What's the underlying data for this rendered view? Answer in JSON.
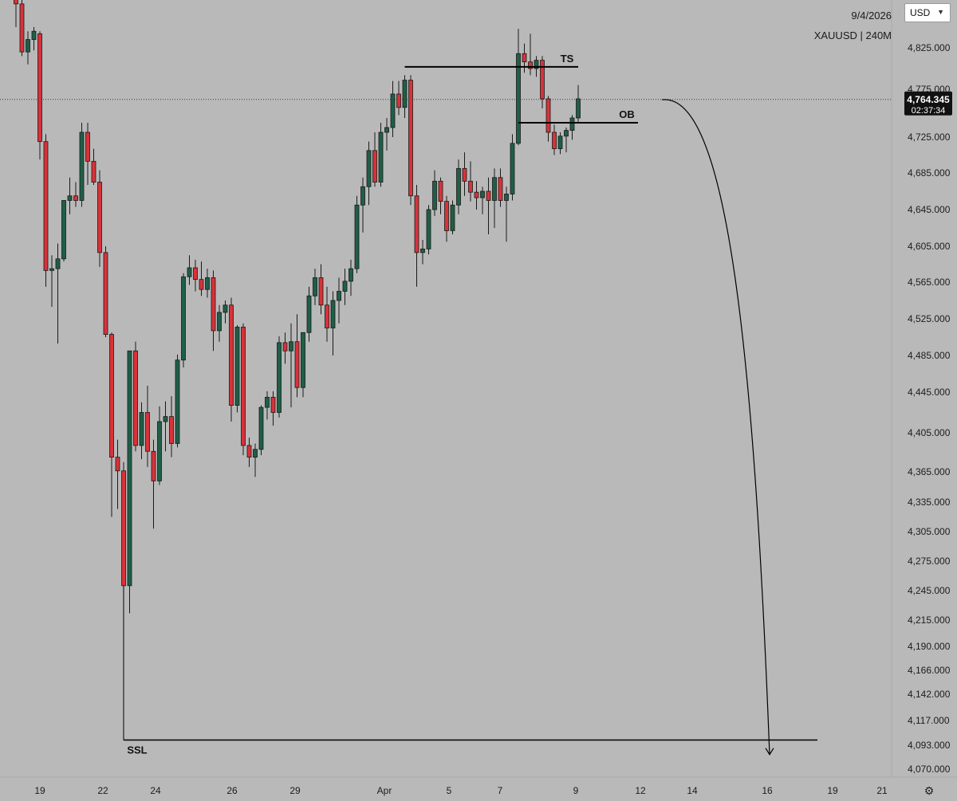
{
  "header": {
    "date": "9/4/2026",
    "symbol_line": "XAUUSD | 240M"
  },
  "currency_select": {
    "value": "USD",
    "chevron_icon": "chevron-down-icon"
  },
  "settings_icon": "gear-icon",
  "colors": {
    "background": "#b9b9b9",
    "bull": "#1f5f47",
    "bear": "#d8323a",
    "wick": "#1a1a1a",
    "price_tag_bg": "#111111",
    "price_tag_text": "#ffffff"
  },
  "chart_data": {
    "type": "candlestick",
    "symbol": "XAUUSD",
    "timeframe": "240M",
    "y_axis_ticks": [
      "4,825.000",
      "4,775.000",
      "4,725.000",
      "4,685.000",
      "4,645.000",
      "4,605.000",
      "4,565.000",
      "4,525.000",
      "4,485.000",
      "4,445.000",
      "4,405.000",
      "4,365.000",
      "4,335.000",
      "4,305.000",
      "4,275.000",
      "4,245.000",
      "4,215.000",
      "4,190.000",
      "4,166.000",
      "4,142.000",
      "4,117.000",
      "4,093.000",
      "4,070.000"
    ],
    "x_axis_ticks": [
      "19",
      "22",
      "24",
      "26",
      "29",
      "Apr",
      "5",
      "7",
      "9",
      "12",
      "14",
      "16",
      "19",
      "21"
    ],
    "current_price": {
      "price": "4,764.345",
      "countdown": "02:37:34",
      "value": 4764.345
    },
    "candles": [
      {
        "o": 4900,
        "h": 4910,
        "l": 4850,
        "c": 4878
      },
      {
        "o": 4878,
        "h": 4900,
        "l": 4815,
        "c": 4820
      },
      {
        "o": 4820,
        "h": 4845,
        "l": 4805,
        "c": 4835
      },
      {
        "o": 4835,
        "h": 4850,
        "l": 4822,
        "c": 4845
      },
      {
        "o": 4842,
        "h": 4845,
        "l": 4700,
        "c": 4720
      },
      {
        "o": 4720,
        "h": 4728,
        "l": 4560,
        "c": 4578
      },
      {
        "o": 4578,
        "h": 4595,
        "l": 4538,
        "c": 4580
      },
      {
        "o": 4580,
        "h": 4608,
        "l": 4498,
        "c": 4591
      },
      {
        "o": 4591,
        "h": 4655,
        "l": 4588,
        "c": 4655
      },
      {
        "o": 4655,
        "h": 4680,
        "l": 4640,
        "c": 4660
      },
      {
        "o": 4660,
        "h": 4675,
        "l": 4648,
        "c": 4655
      },
      {
        "o": 4655,
        "h": 4740,
        "l": 4648,
        "c": 4730
      },
      {
        "o": 4730,
        "h": 4740,
        "l": 4672,
        "c": 4698
      },
      {
        "o": 4698,
        "h": 4712,
        "l": 4672,
        "c": 4675
      },
      {
        "o": 4675,
        "h": 4688,
        "l": 4582,
        "c": 4598
      },
      {
        "o": 4598,
        "h": 4605,
        "l": 4505,
        "c": 4508
      },
      {
        "o": 4508,
        "h": 4510,
        "l": 4320,
        "c": 4380
      },
      {
        "o": 4380,
        "h": 4398,
        "l": 4328,
        "c": 4366
      },
      {
        "o": 4366,
        "h": 4375,
        "l": 4230,
        "c": 4250
      },
      {
        "o": 4250,
        "h": 4490,
        "l": 4222,
        "c": 4490
      },
      {
        "o": 4490,
        "h": 4500,
        "l": 4386,
        "c": 4392
      },
      {
        "o": 4392,
        "h": 4435,
        "l": 4378,
        "c": 4425
      },
      {
        "o": 4425,
        "h": 4452,
        "l": 4370,
        "c": 4386
      },
      {
        "o": 4386,
        "h": 4398,
        "l": 4308,
        "c": 4356
      },
      {
        "o": 4356,
        "h": 4431,
        "l": 4352,
        "c": 4416
      },
      {
        "o": 4416,
        "h": 4436,
        "l": 4386,
        "c": 4421
      },
      {
        "o": 4421,
        "h": 4441,
        "l": 4380,
        "c": 4394
      },
      {
        "o": 4394,
        "h": 4486,
        "l": 4390,
        "c": 4480
      },
      {
        "o": 4480,
        "h": 4575,
        "l": 4472,
        "c": 4571
      },
      {
        "o": 4571,
        "h": 4595,
        "l": 4562,
        "c": 4581
      },
      {
        "o": 4581,
        "h": 4590,
        "l": 4555,
        "c": 4568
      },
      {
        "o": 4568,
        "h": 4588,
        "l": 4550,
        "c": 4557
      },
      {
        "o": 4557,
        "h": 4580,
        "l": 4548,
        "c": 4570
      },
      {
        "o": 4570,
        "h": 4578,
        "l": 4490,
        "c": 4512
      },
      {
        "o": 4512,
        "h": 4540,
        "l": 4500,
        "c": 4532
      },
      {
        "o": 4532,
        "h": 4545,
        "l": 4520,
        "c": 4540
      },
      {
        "o": 4540,
        "h": 4548,
        "l": 4416,
        "c": 4432
      },
      {
        "o": 4432,
        "h": 4518,
        "l": 4425,
        "c": 4516
      },
      {
        "o": 4516,
        "h": 4520,
        "l": 4382,
        "c": 4392
      },
      {
        "o": 4392,
        "h": 4400,
        "l": 4370,
        "c": 4380
      },
      {
        "o": 4380,
        "h": 4394,
        "l": 4360,
        "c": 4388
      },
      {
        "o": 4388,
        "h": 4432,
        "l": 4382,
        "c": 4430
      },
      {
        "o": 4430,
        "h": 4446,
        "l": 4418,
        "c": 4440
      },
      {
        "o": 4440,
        "h": 4446,
        "l": 4412,
        "c": 4425
      },
      {
        "o": 4425,
        "h": 4506,
        "l": 4420,
        "c": 4499
      },
      {
        "o": 4499,
        "h": 4510,
        "l": 4476,
        "c": 4490
      },
      {
        "o": 4490,
        "h": 4520,
        "l": 4430,
        "c": 4500
      },
      {
        "o": 4500,
        "h": 4530,
        "l": 4440,
        "c": 4450
      },
      {
        "o": 4450,
        "h": 4510,
        "l": 4440,
        "c": 4510
      },
      {
        "o": 4510,
        "h": 4560,
        "l": 4500,
        "c": 4550
      },
      {
        "o": 4550,
        "h": 4580,
        "l": 4540,
        "c": 4570
      },
      {
        "o": 4570,
        "h": 4585,
        "l": 4530,
        "c": 4540
      },
      {
        "o": 4540,
        "h": 4560,
        "l": 4500,
        "c": 4515
      },
      {
        "o": 4515,
        "h": 4555,
        "l": 4485,
        "c": 4545
      },
      {
        "o": 4545,
        "h": 4570,
        "l": 4520,
        "c": 4555
      },
      {
        "o": 4555,
        "h": 4580,
        "l": 4540,
        "c": 4566
      },
      {
        "o": 4566,
        "h": 4590,
        "l": 4550,
        "c": 4580
      },
      {
        "o": 4580,
        "h": 4660,
        "l": 4575,
        "c": 4650
      },
      {
        "o": 4650,
        "h": 4680,
        "l": 4620,
        "c": 4670
      },
      {
        "o": 4670,
        "h": 4720,
        "l": 4650,
        "c": 4710
      },
      {
        "o": 4710,
        "h": 4730,
        "l": 4670,
        "c": 4675
      },
      {
        "o": 4675,
        "h": 4740,
        "l": 4670,
        "c": 4730
      },
      {
        "o": 4730,
        "h": 4745,
        "l": 4710,
        "c": 4735
      },
      {
        "o": 4735,
        "h": 4785,
        "l": 4725,
        "c": 4770
      },
      {
        "o": 4770,
        "h": 4785,
        "l": 4748,
        "c": 4756
      },
      {
        "o": 4756,
        "h": 4792,
        "l": 4745,
        "c": 4786
      },
      {
        "o": 4786,
        "h": 4792,
        "l": 4650,
        "c": 4660
      },
      {
        "o": 4660,
        "h": 4672,
        "l": 4560,
        "c": 4598
      },
      {
        "o": 4598,
        "h": 4612,
        "l": 4585,
        "c": 4602
      },
      {
        "o": 4602,
        "h": 4650,
        "l": 4596,
        "c": 4645
      },
      {
        "o": 4645,
        "h": 4688,
        "l": 4638,
        "c": 4676
      },
      {
        "o": 4676,
        "h": 4680,
        "l": 4640,
        "c": 4654
      },
      {
        "o": 4654,
        "h": 4660,
        "l": 4610,
        "c": 4622
      },
      {
        "o": 4622,
        "h": 4655,
        "l": 4618,
        "c": 4650
      },
      {
        "o": 4650,
        "h": 4700,
        "l": 4640,
        "c": 4690
      },
      {
        "o": 4690,
        "h": 4708,
        "l": 4660,
        "c": 4676
      },
      {
        "o": 4676,
        "h": 4698,
        "l": 4654,
        "c": 4664
      },
      {
        "o": 4664,
        "h": 4676,
        "l": 4645,
        "c": 4658
      },
      {
        "o": 4658,
        "h": 4670,
        "l": 4640,
        "c": 4665
      },
      {
        "o": 4665,
        "h": 4680,
        "l": 4618,
        "c": 4655
      },
      {
        "o": 4655,
        "h": 4690,
        "l": 4625,
        "c": 4680
      },
      {
        "o": 4680,
        "h": 4690,
        "l": 4648,
        "c": 4655
      },
      {
        "o": 4655,
        "h": 4670,
        "l": 4610,
        "c": 4662
      },
      {
        "o": 4662,
        "h": 4728,
        "l": 4655,
        "c": 4718
      },
      {
        "o": 4718,
        "h": 4848,
        "l": 4716,
        "c": 4818
      },
      {
        "o": 4818,
        "h": 4830,
        "l": 4795,
        "c": 4808
      },
      {
        "o": 4808,
        "h": 4842,
        "l": 4792,
        "c": 4800
      },
      {
        "o": 4800,
        "h": 4815,
        "l": 4790,
        "c": 4810
      },
      {
        "o": 4810,
        "h": 4815,
        "l": 4755,
        "c": 4765
      },
      {
        "o": 4765,
        "h": 4768,
        "l": 4720,
        "c": 4730
      },
      {
        "o": 4730,
        "h": 4738,
        "l": 4705,
        "c": 4712
      },
      {
        "o": 4712,
        "h": 4730,
        "l": 4706,
        "c": 4726
      },
      {
        "o": 4726,
        "h": 4735,
        "l": 4708,
        "c": 4732
      },
      {
        "o": 4732,
        "h": 4748,
        "l": 4722,
        "c": 4745
      },
      {
        "o": 4745,
        "h": 4780,
        "l": 4740,
        "c": 4765
      }
    ],
    "annotations": {
      "ts": {
        "label": "TS",
        "price": 4802,
        "from_candle": 65,
        "to_candle": 94
      },
      "ob": {
        "label": "OB",
        "price": 4740,
        "from_candle": 84,
        "to_candle": 104
      },
      "ssl": {
        "label": "SSL",
        "price": 4098,
        "from_candle": 18,
        "to_candle": 134
      },
      "projection": {
        "from_candle": 108,
        "from_price": 4764,
        "to_candle": 126,
        "to_price": 4084
      }
    }
  }
}
